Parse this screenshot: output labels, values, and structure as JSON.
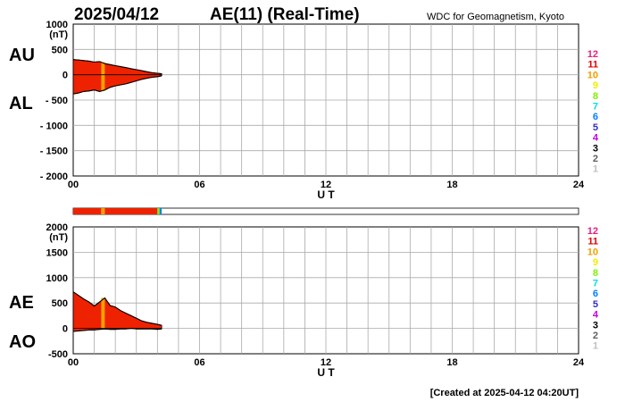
{
  "header": {
    "date": "2025/04/12",
    "title": "AE(11) (Real-Time)",
    "source": "WDC for Geomagnetism, Kyoto"
  },
  "footer": {
    "created": "[Created at 2025-04-12 04:20UT]"
  },
  "level_scale": {
    "labels": [
      "12",
      "11",
      "10",
      "9",
      "8",
      "7",
      "6",
      "5",
      "4",
      "3",
      "2",
      "1"
    ],
    "colors": [
      "#e8207a",
      "#e00000",
      "#f0a000",
      "#f0f000",
      "#80f000",
      "#00e0e0",
      "#0080ff",
      "#3030c0",
      "#c000e0",
      "#000000",
      "#606060",
      "#c0c0c0"
    ]
  },
  "colors": {
    "fill_main": "#ee2200",
    "highlight": "#f0a000",
    "grid": "#aaaaaa"
  },
  "chart_data": [
    {
      "type": "area",
      "name": "AU/AL",
      "ylabel": "(nT)",
      "series_labels": [
        "AU",
        "AL"
      ],
      "xlabel": "U T",
      "xlim": [
        0,
        24
      ],
      "xticks": [
        "00",
        "06",
        "12",
        "18",
        "24"
      ],
      "ylim": [
        -2000,
        1000
      ],
      "yticks": [
        "1000",
        "500",
        "0",
        "- 500",
        "- 1000",
        "- 1500",
        "- 2000"
      ],
      "grid": true,
      "x": [
        0,
        0.25,
        0.5,
        0.75,
        1.0,
        1.25,
        1.5,
        1.75,
        2.0,
        2.25,
        2.5,
        2.75,
        3.0,
        3.25,
        3.5,
        3.75,
        4.0,
        4.2
      ],
      "series": [
        {
          "name": "AU",
          "values": [
            300,
            290,
            280,
            270,
            250,
            260,
            220,
            200,
            180,
            160,
            140,
            120,
            100,
            80,
            60,
            40,
            30,
            20
          ]
        },
        {
          "name": "AL",
          "values": [
            -380,
            -360,
            -330,
            -320,
            -300,
            -330,
            -300,
            -250,
            -220,
            -200,
            -180,
            -150,
            -120,
            -90,
            -70,
            -50,
            -40,
            -20
          ]
        }
      ],
      "highlight_x": [
        1.33,
        1.5
      ]
    },
    {
      "type": "area",
      "name": "AE/AO",
      "ylabel": "(nT)",
      "series_labels": [
        "AE",
        "AO"
      ],
      "xlabel": "U T",
      "xlim": [
        0,
        24
      ],
      "xticks": [
        "00",
        "06",
        "12",
        "18",
        "24"
      ],
      "ylim": [
        -500,
        2000
      ],
      "yticks": [
        "2000",
        "1500",
        "1000",
        "500",
        "0",
        "-500"
      ],
      "grid": true,
      "x": [
        0,
        0.25,
        0.5,
        0.75,
        1.0,
        1.25,
        1.5,
        1.75,
        2.0,
        2.25,
        2.5,
        2.75,
        3.0,
        3.25,
        3.5,
        3.75,
        4.0,
        4.2
      ],
      "series": [
        {
          "name": "AE",
          "values": [
            720,
            650,
            580,
            520,
            440,
            520,
            600,
            450,
            420,
            350,
            300,
            250,
            200,
            150,
            120,
            100,
            80,
            60
          ]
        },
        {
          "name": "AO",
          "values": [
            -60,
            -50,
            -40,
            -30,
            -30,
            -20,
            -10,
            -20,
            -20,
            -10,
            -10,
            0,
            -10,
            -10,
            -10,
            -10,
            -20,
            -10
          ]
        }
      ],
      "highlight_x": [
        1.33,
        1.5
      ]
    }
  ],
  "status_bar": {
    "segments": [
      {
        "from": 0,
        "to": 1.33,
        "color": "#ee2200"
      },
      {
        "from": 1.33,
        "to": 1.5,
        "color": "#f0a000"
      },
      {
        "from": 1.5,
        "to": 4.0,
        "color": "#ee2200"
      },
      {
        "from": 4.0,
        "to": 4.1,
        "color": "#80f000"
      },
      {
        "from": 4.1,
        "to": 4.2,
        "color": "#0080ff"
      }
    ]
  }
}
